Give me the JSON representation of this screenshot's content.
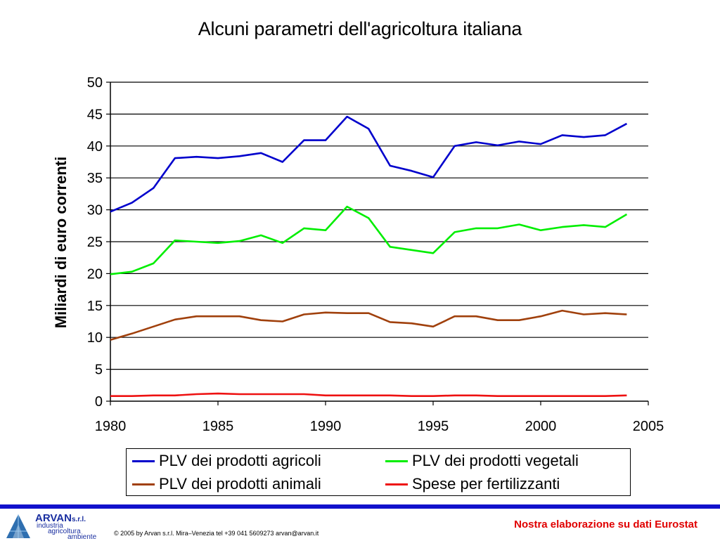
{
  "chart_data": {
    "type": "line",
    "title": "Alcuni parametri dell'agricoltura italiana",
    "ylabel": "Miliardi di euro correnti",
    "xlabel": "",
    "xlim": [
      1980,
      2005
    ],
    "ylim": [
      0,
      50
    ],
    "x_ticks": [
      1980,
      1985,
      1990,
      1995,
      2000,
      2005
    ],
    "y_ticks": [
      0,
      5,
      10,
      15,
      20,
      25,
      30,
      35,
      40,
      45,
      50
    ],
    "grid": "horizontal",
    "legend_position": "bottom",
    "x": [
      1980,
      1981,
      1982,
      1983,
      1984,
      1985,
      1986,
      1987,
      1988,
      1989,
      1990,
      1991,
      1992,
      1993,
      1994,
      1995,
      1996,
      1997,
      1998,
      1999,
      2000,
      2001,
      2002,
      2003,
      2004
    ],
    "series": [
      {
        "name": "PLV dei prodotti agricoli",
        "color": "#0000cc",
        "values": [
          29.7,
          31.1,
          33.4,
          38.1,
          38.3,
          38.1,
          38.4,
          38.9,
          37.5,
          40.9,
          40.9,
          44.6,
          42.7,
          36.9,
          36.1,
          35.1,
          40.0,
          40.6,
          40.1,
          40.7,
          40.3,
          41.7,
          41.4,
          41.7,
          43.5
        ]
      },
      {
        "name": "PLV dei prodotti vegetali",
        "color": "#00ee00",
        "values": [
          19.9,
          20.3,
          21.6,
          25.2,
          25.0,
          24.8,
          25.1,
          26.0,
          24.8,
          27.1,
          26.8,
          30.5,
          28.7,
          24.2,
          23.7,
          23.2,
          26.5,
          27.1,
          27.1,
          27.7,
          26.8,
          27.3,
          27.6,
          27.3,
          29.3
        ]
      },
      {
        "name": "PLV dei prodotti animali",
        "color": "#a0400c",
        "values": [
          9.6,
          10.6,
          11.7,
          12.8,
          13.3,
          13.3,
          13.3,
          12.7,
          12.5,
          13.6,
          13.9,
          13.8,
          13.8,
          12.4,
          12.2,
          11.7,
          13.3,
          13.3,
          12.7,
          12.7,
          13.3,
          14.2,
          13.6,
          13.8,
          13.6
        ]
      },
      {
        "name": "Spese per fertilizzanti",
        "color": "#ee1111",
        "values": [
          0.8,
          0.8,
          0.9,
          0.9,
          1.1,
          1.2,
          1.1,
          1.1,
          1.1,
          1.1,
          0.9,
          0.9,
          0.9,
          0.9,
          0.8,
          0.8,
          0.9,
          0.9,
          0.8,
          0.8,
          0.8,
          0.8,
          0.8,
          0.8,
          0.9
        ]
      }
    ]
  },
  "footer": {
    "logo_name": "ARVAN",
    "logo_suffix": "s.r.l.",
    "logo_line1": "industria",
    "logo_line2": "agricoltura",
    "logo_line3": "ambiente",
    "copyright": "© 2005 by Arvan s.r.l. Mira–Venezia tel +39 041 5609273 arvan@arvan.it",
    "source_note": "Nostra elaborazione su dati Eurostat"
  },
  "colors": {
    "footer_bar": "#1111cc",
    "source_note": "#e00000"
  }
}
